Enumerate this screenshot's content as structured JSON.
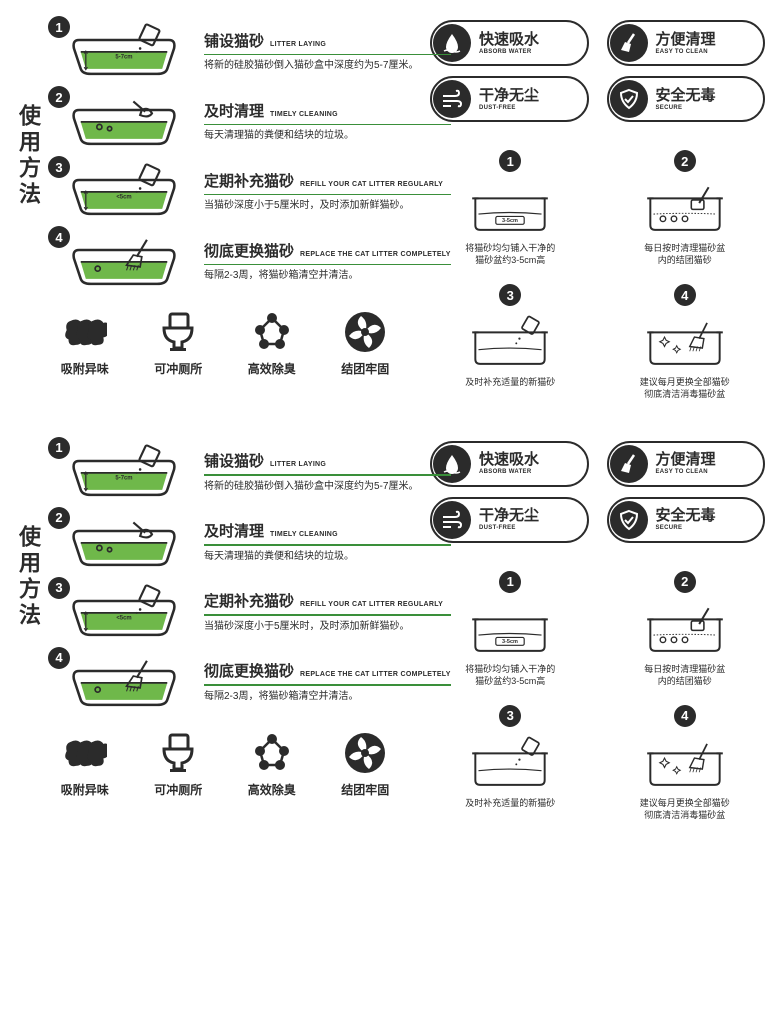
{
  "colors": {
    "ink": "#2b2b2b",
    "green": "#3a8f3a",
    "litter": "#6fb84a",
    "white": "#ffffff"
  },
  "block": {
    "vertical_title": "使用方法",
    "steps": [
      {
        "num": "1",
        "title": "铺设猫砂",
        "en": "LITTER LAYING",
        "desc": "将新的硅胶猫砂倒入猫砂盒中深度约为5-7厘米。",
        "depth": "5-7cm"
      },
      {
        "num": "2",
        "title": "及时清理",
        "en": "TIMELY CLEANING",
        "desc": "每天清理猫的粪便和结块的垃圾。"
      },
      {
        "num": "3",
        "title": "定期补充猫砂",
        "en": "REFILL YOUR CAT LITTER REGULARLY",
        "desc": "当猫砂深度小于5厘米时，及时添加新鲜猫砂。",
        "depth": "<5cm"
      },
      {
        "num": "4",
        "title": "彻底更换猫砂",
        "en": "REPLACE THE CAT LITTER COMPLETELY",
        "desc": "每隔2-3周，将猫砂箱清空并清洁。"
      }
    ],
    "features": [
      {
        "label": "吸附异味",
        "icon": "cloud"
      },
      {
        "label": "可冲厕所",
        "icon": "toilet"
      },
      {
        "label": "高效除臭",
        "icon": "molecule"
      },
      {
        "label": "结团牢固",
        "icon": "fan"
      }
    ],
    "badges": [
      {
        "cn": "快速吸水",
        "en": "ABSORB WATER",
        "icon": "drop"
      },
      {
        "cn": "方便清理",
        "en": "EASY TO CLEAN",
        "icon": "broom"
      },
      {
        "cn": "干净无尘",
        "en": "DUST-FREE",
        "icon": "wind"
      },
      {
        "cn": "安全无毒",
        "en": "SECURE",
        "icon": "shield"
      }
    ],
    "mini_steps": [
      {
        "num": "1",
        "text": "将猫砂均匀铺入干净的\n猫砂盆约3-5cm高",
        "depth": "3-5cm",
        "icon": "tray"
      },
      {
        "num": "2",
        "text": "每日按时清理猫砂盆\n内的结团猫砂",
        "icon": "scoop"
      },
      {
        "num": "3",
        "text": "及时补充适量的新猫砂",
        "icon": "pour"
      },
      {
        "num": "4",
        "text": "建议每月更换全部猫砂\n彻底清洁消毒猫砂盆",
        "icon": "clean"
      }
    ]
  }
}
